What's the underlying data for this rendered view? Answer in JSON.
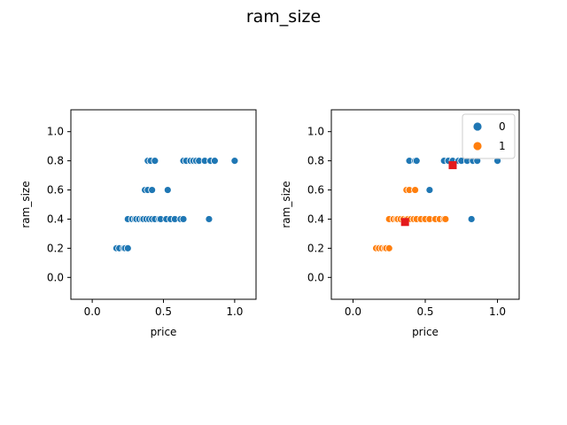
{
  "chart_data": {
    "suptitle": "ram_size",
    "colors": {
      "0": "#1f77b4",
      "1": "#ff7f0e",
      "centroid": "#e31a1c"
    },
    "panels": [
      {
        "type": "scatter",
        "xlabel": "price",
        "ylabel": "ram_size",
        "xlim": [
          -0.15,
          1.15
        ],
        "ylim": [
          -0.15,
          1.15
        ],
        "xticks": [
          0.0,
          0.5,
          1.0
        ],
        "xtick_labels": [
          "0.0",
          "0.5",
          "1.0"
        ],
        "yticks": [
          0.0,
          0.2,
          0.4,
          0.6,
          0.8,
          1.0
        ],
        "ytick_labels": [
          "0.0",
          "0.2",
          "0.4",
          "0.6",
          "0.8",
          "1.0"
        ],
        "series": [
          {
            "color_key": "0",
            "points": [
              [
                0.17,
                0.2
              ],
              [
                0.19,
                0.2
              ],
              [
                0.22,
                0.2
              ],
              [
                0.23,
                0.2
              ],
              [
                0.25,
                0.2
              ],
              [
                0.25,
                0.4
              ],
              [
                0.28,
                0.4
              ],
              [
                0.3,
                0.4
              ],
              [
                0.31,
                0.4
              ],
              [
                0.33,
                0.4
              ],
              [
                0.35,
                0.4
              ],
              [
                0.36,
                0.4
              ],
              [
                0.38,
                0.4
              ],
              [
                0.4,
                0.4
              ],
              [
                0.42,
                0.4
              ],
              [
                0.44,
                0.4
              ],
              [
                0.47,
                0.4
              ],
              [
                0.48,
                0.4
              ],
              [
                0.52,
                0.4
              ],
              [
                0.55,
                0.4
              ],
              [
                0.58,
                0.4
              ],
              [
                0.62,
                0.4
              ],
              [
                0.64,
                0.4
              ],
              [
                0.82,
                0.4
              ],
              [
                0.37,
                0.6
              ],
              [
                0.39,
                0.6
              ],
              [
                0.42,
                0.6
              ],
              [
                0.53,
                0.6
              ],
              [
                0.39,
                0.8
              ],
              [
                0.41,
                0.8
              ],
              [
                0.44,
                0.8
              ],
              [
                0.64,
                0.8
              ],
              [
                0.66,
                0.8
              ],
              [
                0.69,
                0.8
              ],
              [
                0.71,
                0.8
              ],
              [
                0.73,
                0.8
              ],
              [
                0.75,
                0.8
              ],
              [
                0.79,
                0.8
              ],
              [
                0.83,
                0.8
              ],
              [
                0.86,
                0.8
              ],
              [
                1.0,
                0.8
              ]
            ]
          }
        ]
      },
      {
        "type": "scatter",
        "xlabel": "price",
        "ylabel": "ram_size",
        "xlim": [
          -0.15,
          1.15
        ],
        "ylim": [
          -0.15,
          1.15
        ],
        "xticks": [
          0.0,
          0.5,
          1.0
        ],
        "xtick_labels": [
          "0.0",
          "0.5",
          "1.0"
        ],
        "yticks": [
          0.0,
          0.2,
          0.4,
          0.6,
          0.8,
          1.0
        ],
        "ytick_labels": [
          "0.0",
          "0.2",
          "0.4",
          "0.6",
          "0.8",
          "1.0"
        ],
        "legend": {
          "placement": "top-right",
          "entries": [
            "0",
            "1"
          ]
        },
        "series": [
          {
            "name": "0",
            "color_key": "0",
            "points": [
              [
                0.39,
                0.8
              ],
              [
                0.43,
                0.8
              ],
              [
                0.44,
                0.8
              ],
              [
                0.63,
                0.8
              ],
              [
                0.66,
                0.8
              ],
              [
                0.69,
                0.8
              ],
              [
                0.73,
                0.8
              ],
              [
                0.75,
                0.8
              ],
              [
                0.79,
                0.8
              ],
              [
                0.83,
                0.8
              ],
              [
                0.86,
                0.8
              ],
              [
                1.0,
                0.8
              ],
              [
                0.53,
                0.6
              ],
              [
                0.82,
                0.4
              ]
            ]
          },
          {
            "name": "1",
            "color_key": "1",
            "points": [
              [
                0.16,
                0.2
              ],
              [
                0.18,
                0.2
              ],
              [
                0.2,
                0.2
              ],
              [
                0.22,
                0.2
              ],
              [
                0.23,
                0.2
              ],
              [
                0.25,
                0.2
              ],
              [
                0.25,
                0.4
              ],
              [
                0.28,
                0.4
              ],
              [
                0.3,
                0.4
              ],
              [
                0.31,
                0.4
              ],
              [
                0.33,
                0.4
              ],
              [
                0.35,
                0.4
              ],
              [
                0.37,
                0.4
              ],
              [
                0.38,
                0.4
              ],
              [
                0.4,
                0.4
              ],
              [
                0.42,
                0.4
              ],
              [
                0.44,
                0.4
              ],
              [
                0.47,
                0.4
              ],
              [
                0.5,
                0.4
              ],
              [
                0.53,
                0.4
              ],
              [
                0.57,
                0.4
              ],
              [
                0.6,
                0.4
              ],
              [
                0.63,
                0.4
              ],
              [
                0.64,
                0.4
              ],
              [
                0.37,
                0.6
              ],
              [
                0.39,
                0.6
              ],
              [
                0.43,
                0.6
              ]
            ]
          }
        ],
        "centroids": [
          [
            0.36,
            0.38
          ],
          [
            0.69,
            0.77
          ]
        ]
      }
    ]
  }
}
